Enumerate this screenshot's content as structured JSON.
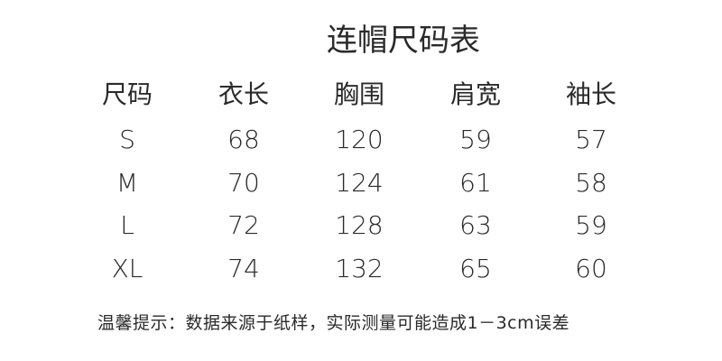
{
  "title": "连帽尺码表",
  "table": {
    "headers": [
      "尺码",
      "衣长",
      "胸围",
      "肩宽",
      "袖长"
    ],
    "rows": [
      [
        "S",
        "68",
        "120",
        "59",
        "57"
      ],
      [
        "M",
        "70",
        "124",
        "61",
        "58"
      ],
      [
        "L",
        "72",
        "128",
        "63",
        "59"
      ],
      [
        "XL",
        "74",
        "132",
        "65",
        "60"
      ]
    ]
  },
  "note": "温馨提示：数据来源于纸样，实际测量可能造成1－3cm误差"
}
